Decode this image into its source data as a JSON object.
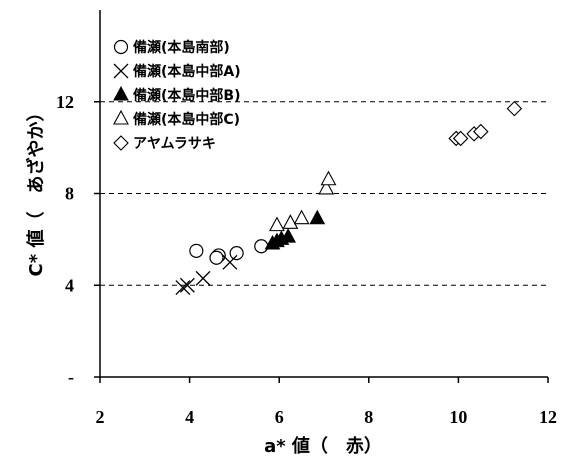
{
  "chart_data": {
    "type": "scatter",
    "xlabel": "a* 値（　赤）",
    "ylabel": "C* 値（　あざやか）",
    "xlim": [
      2,
      12
    ],
    "ylim": [
      0,
      16
    ],
    "xticks": [
      2,
      4,
      6,
      8,
      10,
      12
    ],
    "xtick_labels": [
      "2",
      "4",
      "6",
      "8",
      "10",
      "12"
    ],
    "yticks": [
      0,
      4,
      8,
      12
    ],
    "ytick_labels": [
      "-",
      "4",
      "8",
      "12"
    ],
    "gridlines_y": [
      4,
      8,
      12
    ],
    "grid": "dashed horizontal lines",
    "legend_position": "top-left",
    "series": [
      {
        "name": "備瀬(本島南部)",
        "marker": "circle-open",
        "points": [
          [
            4.15,
            5.5
          ],
          [
            4.65,
            5.3
          ],
          [
            4.6,
            5.2
          ],
          [
            5.05,
            5.4
          ],
          [
            5.6,
            5.7
          ]
        ]
      },
      {
        "name": "備瀬(本島中部A)",
        "marker": "x",
        "points": [
          [
            3.85,
            3.9
          ],
          [
            3.95,
            4.0
          ],
          [
            4.3,
            4.3
          ],
          [
            4.9,
            5.0
          ]
        ]
      },
      {
        "name": "備瀬(本島中部B)",
        "marker": "triangle-filled",
        "points": [
          [
            5.85,
            5.8
          ],
          [
            5.95,
            5.9
          ],
          [
            6.05,
            6.0
          ],
          [
            6.2,
            6.1
          ],
          [
            6.85,
            6.9
          ]
        ]
      },
      {
        "name": "備瀬(本島中部C)",
        "marker": "triangle-open",
        "points": [
          [
            5.95,
            6.6
          ],
          [
            6.25,
            6.7
          ],
          [
            6.5,
            6.9
          ],
          [
            7.05,
            8.2
          ],
          [
            7.1,
            8.6
          ]
        ]
      },
      {
        "name": "アヤムラサキ",
        "marker": "diamond-open",
        "points": [
          [
            9.95,
            10.4
          ],
          [
            10.05,
            10.4
          ],
          [
            10.35,
            10.6
          ],
          [
            10.5,
            10.7
          ],
          [
            11.25,
            11.7
          ]
        ]
      }
    ]
  }
}
